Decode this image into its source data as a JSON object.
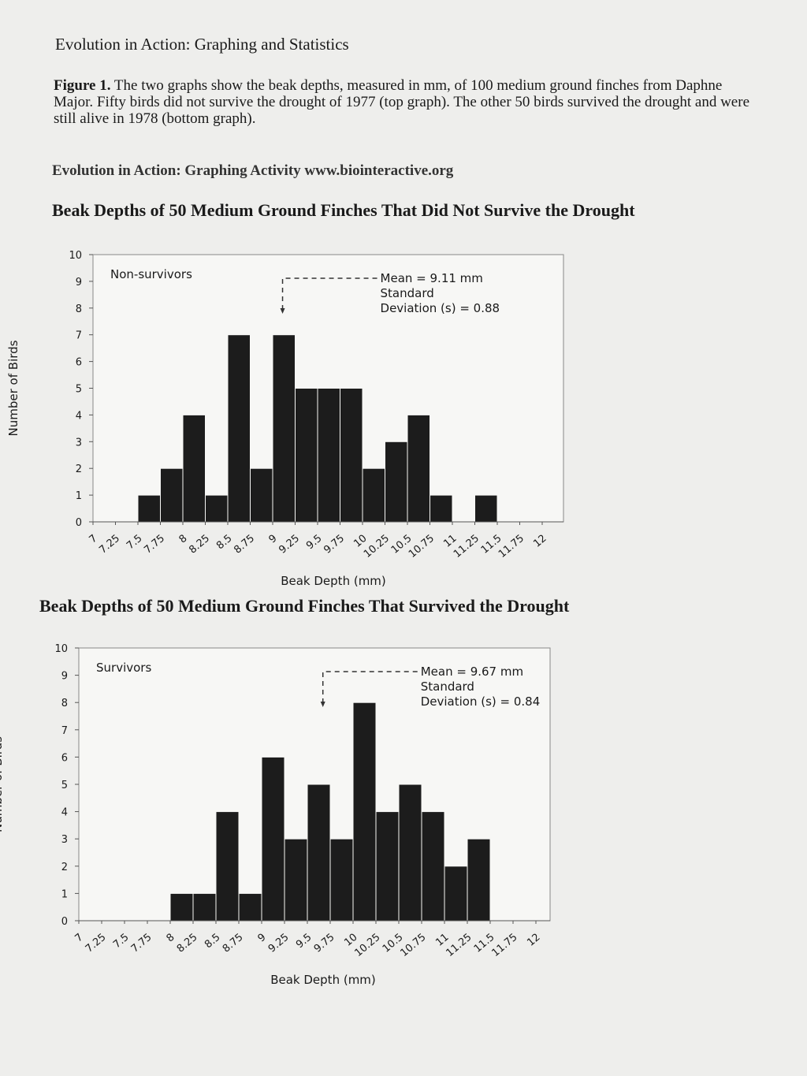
{
  "header": {
    "title": "Evolution in Action: Graphing and Statistics",
    "figure_label": "Figure 1.",
    "caption": "The two graphs show the beak depths, measured in mm, of 100 medium ground finches from Daphne Major. Fifty birds did not survive the drought of 1977 (top graph). The other 50 birds survived the drought and were still alive in 1978 (bottom graph).",
    "source": "Evolution in Action: Graphing Activity www.biointeractive.org"
  },
  "chart_data": [
    {
      "type": "histogram",
      "title": "Beak Depths of 50 Medium Ground Finches That Did Not Survive the Drought",
      "panel_label": "Non-survivors",
      "mean": {
        "value": 9.11,
        "label": "Mean = 9.11 mm"
      },
      "sd_label": [
        "Standard",
        "Deviation (s) = 0.88"
      ],
      "xlabel": "Beak Depth (mm)",
      "ylabel": "Number of Birds",
      "bins": [
        7,
        7.25,
        7.5,
        7.75,
        8,
        8.25,
        8.5,
        8.75,
        9,
        9.25,
        9.5,
        9.75,
        10,
        10.25,
        10.5,
        10.75,
        11,
        11.25,
        11.5,
        11.75,
        12
      ],
      "values": [
        0,
        0,
        1,
        2,
        4,
        1,
        7,
        2,
        7,
        5,
        5,
        5,
        2,
        3,
        4,
        1,
        0,
        1,
        0,
        0
      ],
      "color": "#1c1c1c",
      "xticks": [
        7,
        7.25,
        7.5,
        7.75,
        8,
        8.25,
        8.5,
        8.75,
        9,
        9.25,
        9.5,
        9.75,
        10,
        10.25,
        10.5,
        10.75,
        11,
        11.25,
        11.5,
        11.75,
        12
      ],
      "ylim": [
        0,
        10
      ],
      "yticks": [
        0,
        1,
        2,
        3,
        4,
        5,
        6,
        7,
        8,
        9,
        10
      ]
    },
    {
      "type": "histogram",
      "title": "Beak Depths of 50 Medium Ground Finches That Survived the Drought",
      "panel_label": "Survivors",
      "mean": {
        "value": 9.67,
        "label": "Mean = 9.67 mm"
      },
      "sd_label": [
        "Standard",
        "Deviation (s) = 0.84"
      ],
      "xlabel": "Beak Depth (mm)",
      "ylabel": "Number of Birds",
      "bins": [
        7,
        7.25,
        7.5,
        7.75,
        8,
        8.25,
        8.5,
        8.75,
        9,
        9.25,
        9.5,
        9.75,
        10,
        10.25,
        10.5,
        10.75,
        11,
        11.25,
        11.5,
        11.75,
        12
      ],
      "values": [
        0,
        0,
        0,
        0,
        1,
        1,
        4,
        1,
        6,
        3,
        5,
        3,
        8,
        4,
        5,
        4,
        2,
        3,
        0,
        0
      ],
      "color": "#1c1c1c",
      "xticks": [
        7,
        7.25,
        7.5,
        7.75,
        8,
        8.25,
        8.5,
        8.75,
        9,
        9.25,
        9.5,
        9.75,
        10,
        10.25,
        10.5,
        10.75,
        11,
        11.25,
        11.5,
        11.75,
        12
      ],
      "ylim": [
        0,
        10
      ],
      "yticks": [
        0,
        1,
        2,
        3,
        4,
        5,
        6,
        7,
        8,
        9,
        10
      ]
    }
  ]
}
